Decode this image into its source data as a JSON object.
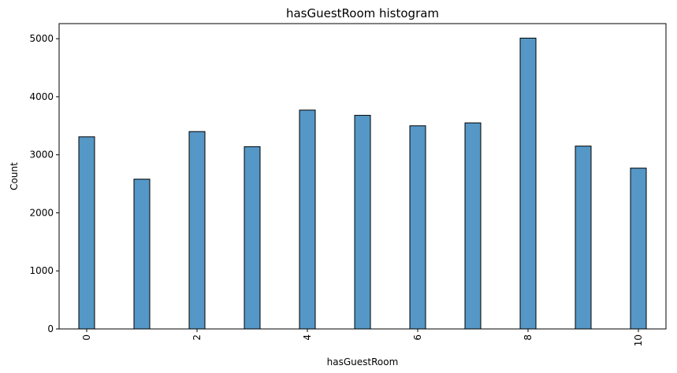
{
  "chart_data": {
    "type": "bar",
    "title": "hasGuestRoom histogram",
    "xlabel": "hasGuestRoom",
    "ylabel": "Count",
    "categories": [
      0,
      1,
      2,
      3,
      4,
      5,
      6,
      7,
      8,
      9,
      10
    ],
    "values": [
      3310,
      2580,
      3400,
      3140,
      3770,
      3680,
      3500,
      3550,
      5010,
      3150,
      2770
    ],
    "xticks": [
      "0",
      "2",
      "4",
      "6",
      "8",
      "10"
    ],
    "yticks": [
      "0",
      "1000",
      "2000",
      "3000",
      "4000",
      "5000"
    ],
    "xlim": [
      -0.5,
      10.5
    ],
    "ylim": [
      0,
      5260
    ],
    "xtick_rotation": "vertical",
    "grid": false,
    "legend": "none",
    "bar_color": "#5597c6",
    "bar_edge_color": "#000000"
  }
}
